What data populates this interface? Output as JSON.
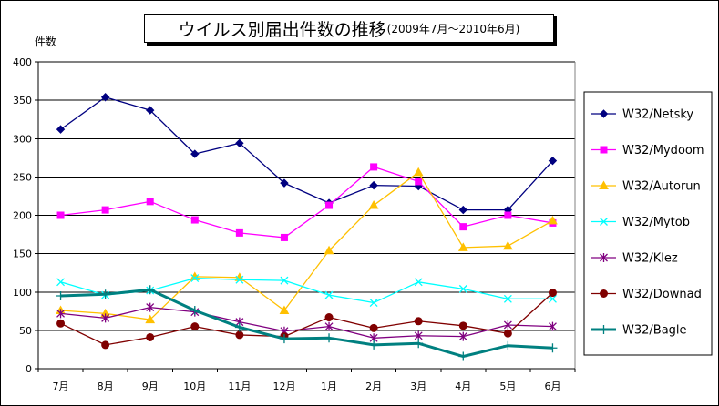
{
  "chart_data": {
    "type": "line",
    "title": "ウイルス別届出件数の推移",
    "subtitle": "(2009年7月～2010年6月)",
    "ylabel": "件数",
    "xlabel": "",
    "ylim": [
      0,
      400
    ],
    "yticks": [
      0,
      50,
      100,
      150,
      200,
      250,
      300,
      350,
      400
    ],
    "grid": "horizontal",
    "legend_position": "right",
    "categories": [
      "7月",
      "8月",
      "9月",
      "10月",
      "11月",
      "12月",
      "1月",
      "2月",
      "3月",
      "4月",
      "5月",
      "6月"
    ],
    "series": [
      {
        "name": "W32/Netsky",
        "color": "#000080",
        "marker": "diamond",
        "values": [
          312,
          354,
          337,
          280,
          294,
          242,
          216,
          239,
          238,
          207,
          207,
          271
        ]
      },
      {
        "name": "W32/Mydoom",
        "color": "#ff00ff",
        "marker": "square",
        "values": [
          200,
          207,
          218,
          194,
          177,
          171,
          213,
          263,
          244,
          185,
          200,
          190
        ]
      },
      {
        "name": "W32/Autorun",
        "color": "#ffc000",
        "marker": "triangle",
        "values": [
          76,
          72,
          64,
          120,
          119,
          76,
          154,
          213,
          256,
          158,
          160,
          193
        ]
      },
      {
        "name": "W32/Mytob",
        "color": "#00ffff",
        "marker": "x",
        "values": [
          113,
          96,
          102,
          118,
          116,
          115,
          96,
          86,
          113,
          104,
          91,
          91
        ]
      },
      {
        "name": "W32/Klez",
        "color": "#800080",
        "marker": "star",
        "values": [
          72,
          66,
          80,
          74,
          61,
          49,
          55,
          40,
          43,
          42,
          57,
          55
        ]
      },
      {
        "name": "W32/Downad",
        "color": "#800000",
        "marker": "circle",
        "values": [
          59,
          31,
          41,
          55,
          44,
          42,
          67,
          53,
          62,
          56,
          46,
          99
        ]
      },
      {
        "name": "W32/Bagle",
        "color": "#008080",
        "marker": "plus",
        "thick": true,
        "values": [
          95,
          97,
          103,
          76,
          54,
          39,
          40,
          31,
          33,
          16,
          30,
          27
        ]
      }
    ]
  }
}
